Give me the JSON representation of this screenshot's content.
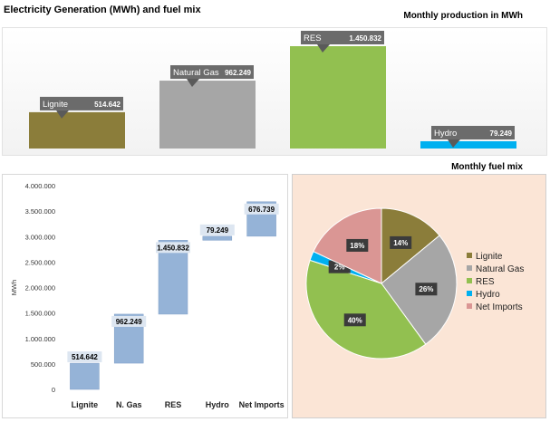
{
  "title": "Electricity Generation (MWh) and fuel mix",
  "chart_data": [
    {
      "type": "bar",
      "subtitle": "Monthly production in MWh",
      "categories": [
        "Lignite",
        "Natural Gas",
        "RES",
        "Hydro"
      ],
      "values": [
        514642,
        962249,
        1450832,
        79249
      ],
      "value_labels": [
        "514.642",
        "962.249",
        "1.450.832",
        "79.249"
      ],
      "colors": [
        "#8b7d3a",
        "#a6a6a6",
        "#92c050",
        "#00b0f0"
      ]
    },
    {
      "type": "bar",
      "subtitle": "",
      "categories": [
        "Lignite",
        "N. Gas",
        "RES",
        "Hydro",
        "Net Imports"
      ],
      "values": [
        514642,
        962249,
        1450832,
        79249,
        676739
      ],
      "value_labels": [
        "514.642",
        "962.249",
        "1.450.832",
        "79.249",
        "676.739"
      ],
      "ylabel": "MWh",
      "ylim": [
        0,
        4000000
      ],
      "y_ticks": [
        0,
        500000,
        1000000,
        1500000,
        2000000,
        2500000,
        3000000,
        3500000,
        4000000
      ],
      "y_tick_labels": [
        "0",
        "500.000",
        "1.000.000",
        "1.500.000",
        "2.000.000",
        "2.500.000",
        "3.000.000",
        "3.500.000",
        "4.000.000"
      ],
      "bar_color": "#95b3d7"
    },
    {
      "type": "pie",
      "subtitle": "Monthly fuel mix",
      "labels": [
        "Lignite",
        "Natural Gas",
        "RES",
        "Hydro",
        "Net Imports"
      ],
      "values": [
        14,
        26,
        40,
        2,
        18
      ],
      "value_labels": [
        "14%",
        "26%",
        "40%",
        "2%",
        "18%"
      ],
      "colors": [
        "#8b7d3a",
        "#a6a6a6",
        "#92c050",
        "#00b0f0",
        "#da9694"
      ],
      "legend_position": "right"
    }
  ]
}
